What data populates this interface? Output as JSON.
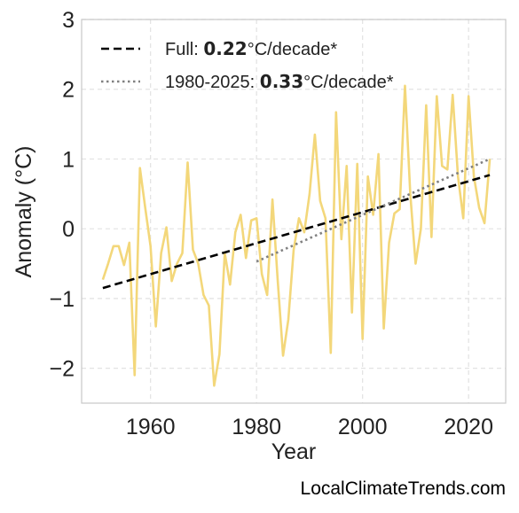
{
  "chart_data": {
    "type": "line",
    "title": "",
    "xlabel": "Year",
    "ylabel": "Anomaly (°C)",
    "xlim": [
      1947,
      2027
    ],
    "ylim": [
      -2.5,
      3
    ],
    "x_ticks": [
      1960,
      1980,
      2000,
      2020
    ],
    "y_ticks": [
      -2,
      -1,
      0,
      1,
      2,
      3
    ],
    "y_tick_labels": [
      "−2",
      "−1",
      "0",
      "1",
      "2",
      "3"
    ],
    "grid": true,
    "legend_position": "top-left",
    "series": [
      {
        "color": "#f3d77a",
        "x": [
          1951,
          1952,
          1953,
          1954,
          1955,
          1956,
          1957,
          1958,
          1959,
          1960,
          1961,
          1962,
          1963,
          1964,
          1965,
          1966,
          1967,
          1968,
          1969,
          1970,
          1971,
          1972,
          1973,
          1974,
          1975,
          1976,
          1977,
          1978,
          1979,
          1980,
          1981,
          1982,
          1983,
          1984,
          1985,
          1986,
          1987,
          1988,
          1989,
          1990,
          1991,
          1992,
          1993,
          1994,
          1995,
          1996,
          1997,
          1998,
          1999,
          2000,
          2001,
          2002,
          2003,
          2004,
          2005,
          2006,
          2007,
          2008,
          2009,
          2010,
          2011,
          2012,
          2013,
          2014,
          2015,
          2016,
          2017,
          2018,
          2019,
          2020,
          2021,
          2022,
          2023,
          2024
        ],
        "y": [
          -0.73,
          -0.5,
          -0.25,
          -0.25,
          -0.52,
          -0.2,
          -2.1,
          0.87,
          0.3,
          -0.25,
          -1.4,
          -0.35,
          0.02,
          -0.75,
          -0.5,
          -0.35,
          0.95,
          -0.3,
          -0.5,
          -0.95,
          -1.1,
          -2.25,
          -1.8,
          -0.35,
          -0.8,
          -0.05,
          0.2,
          -0.42,
          0.12,
          0.15,
          -0.65,
          -0.95,
          0.42,
          -0.75,
          -1.82,
          -1.3,
          -0.3,
          0.15,
          -0.05,
          0.5,
          1.35,
          0.4,
          0.15,
          -1.78,
          1.67,
          -0.15,
          0.9,
          -1.2,
          0.93,
          -1.58,
          0.75,
          0.2,
          1.07,
          -1.43,
          -0.2,
          0.22,
          0.28,
          2.05,
          0.5,
          -0.5,
          0.0,
          1.77,
          -0.12,
          1.9,
          0.9,
          0.85,
          1.92,
          0.75,
          0.15,
          1.9,
          0.75,
          0.3,
          0.08,
          1.0
        ]
      }
    ],
    "trends": [
      {
        "name": "Full",
        "value": "0.22",
        "unit": "°C/decade*",
        "color": "#000000",
        "style": "dashed",
        "x": [
          1951,
          2024
        ],
        "y": [
          -0.85,
          0.77
        ]
      },
      {
        "name": "1980-2025",
        "value": "0.33",
        "unit": "°C/decade*",
        "color": "#808080",
        "style": "dotted",
        "x": [
          1980,
          2024
        ],
        "y": [
          -0.47,
          1.0
        ]
      }
    ]
  },
  "watermark": "LocalClimateTrends.com"
}
